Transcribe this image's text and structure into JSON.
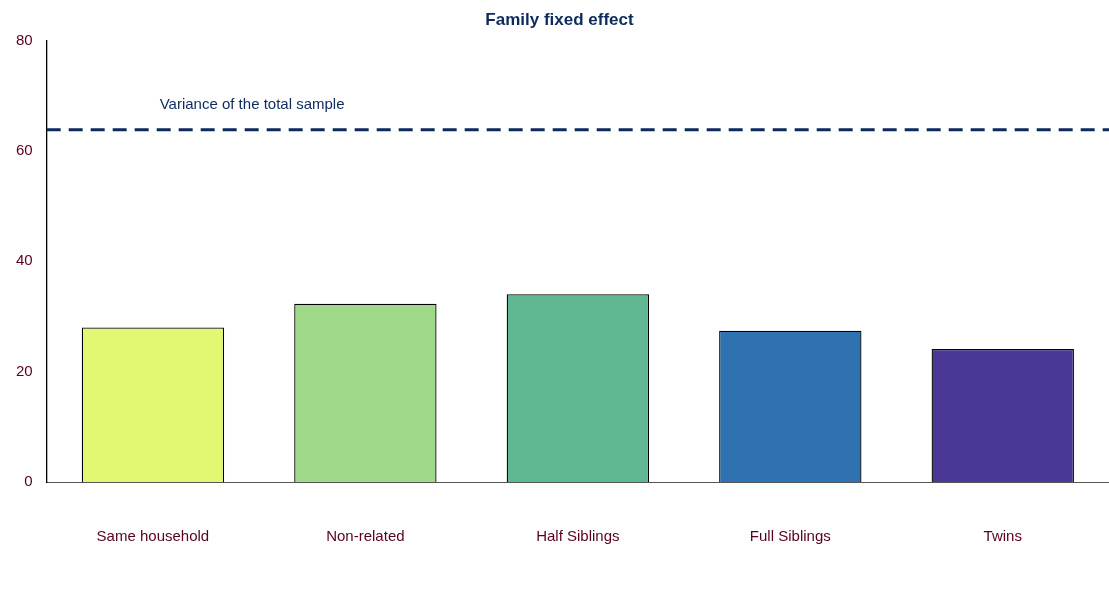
{
  "chart_data": {
    "type": "bar",
    "title": "Family fixed effect",
    "categories": [
      "Same household",
      "Non-related",
      "Half Siblings",
      "Full Siblings",
      "Twins"
    ],
    "values": [
      28,
      32.3,
      34,
      27.4,
      24.1
    ],
    "colors": [
      "#e2f873",
      "#a1d98b",
      "#5fb891",
      "#2f72b2",
      "#4b3796"
    ],
    "ylim": [
      0,
      80
    ],
    "yticks": [
      0,
      20,
      40,
      60,
      80
    ],
    "grid": false,
    "legend": false,
    "ref_lines": [
      {
        "axis": "y",
        "value": 63.8,
        "label": "Variance of the total sample",
        "color": "#0d2a5e",
        "line_style": "dashed"
      }
    ]
  }
}
